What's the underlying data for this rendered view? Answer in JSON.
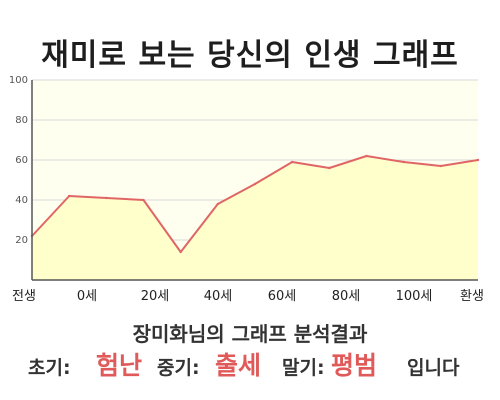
{
  "title": "재미로 보는 당신의 인생 그래프",
  "subtitle": "장미화님의 그래프 분석결과",
  "result": {
    "early_label": "초기:",
    "early_value": "험난",
    "mid_label": "중기:",
    "mid_value": "출세",
    "late_label": "말기:",
    "late_value": "평범",
    "ending": "입니다"
  },
  "colors": {
    "line": "#e06666",
    "fill": "#ffffcc",
    "plot_bg": "#fffff0",
    "grid": "#d9d9d9",
    "accent": "#e05a5a"
  },
  "chart_data": {
    "type": "area",
    "x_ticks": [
      "전생",
      "0세",
      "20세",
      "40세",
      "60세",
      "80세",
      "100세",
      "환생"
    ],
    "y_ticks": [
      "20",
      "40",
      "60",
      "80",
      "100"
    ],
    "ylim": [
      0,
      100
    ],
    "grid": true,
    "points": [
      {
        "x": "전생",
        "y": 22
      },
      {
        "x": "0세",
        "y": 42
      },
      {
        "x": "10세",
        "y": 41
      },
      {
        "x": "20세",
        "y": 40
      },
      {
        "x": "30세",
        "y": 14
      },
      {
        "x": "40세",
        "y": 38
      },
      {
        "x": "50세",
        "y": 48
      },
      {
        "x": "60세",
        "y": 59
      },
      {
        "x": "70세",
        "y": 56
      },
      {
        "x": "80세",
        "y": 62
      },
      {
        "x": "90세",
        "y": 59
      },
      {
        "x": "100세",
        "y": 57
      },
      {
        "x": "환생",
        "y": 60
      }
    ]
  }
}
